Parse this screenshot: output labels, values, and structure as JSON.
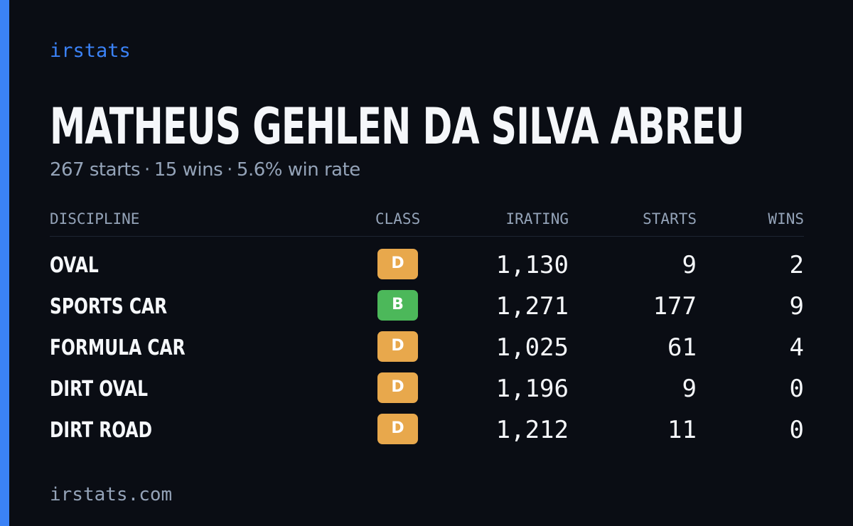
{
  "brand": "irstats",
  "driver": {
    "name": "MATHEUS GEHLEN DA SILVA ABREU",
    "starts_text": "267 starts",
    "wins_text": "15 wins",
    "win_rate_text": "5.6% win rate",
    "separator": "·"
  },
  "table": {
    "headers": {
      "discipline": "DISCIPLINE",
      "class": "CLASS",
      "irating": "IRATING",
      "starts": "STARTS",
      "wins": "WINS"
    },
    "rows": [
      {
        "discipline": "OVAL",
        "class": "D",
        "irating": "1,130",
        "starts": "9",
        "wins": "2"
      },
      {
        "discipline": "SPORTS CAR",
        "class": "B",
        "irating": "1,271",
        "starts": "177",
        "wins": "9"
      },
      {
        "discipline": "FORMULA CAR",
        "class": "D",
        "irating": "1,025",
        "starts": "61",
        "wins": "4"
      },
      {
        "discipline": "DIRT OVAL",
        "class": "D",
        "irating": "1,196",
        "starts": "9",
        "wins": "0"
      },
      {
        "discipline": "DIRT ROAD",
        "class": "D",
        "irating": "1,212",
        "starts": "11",
        "wins": "0"
      }
    ]
  },
  "class_colors": {
    "D": "#e8a84c",
    "B": "#4cb85a"
  },
  "colors": {
    "accent": "#3b82f6",
    "background": "#0a0d14",
    "muted_text": "#94a3b8"
  },
  "footer": "irstats.com"
}
